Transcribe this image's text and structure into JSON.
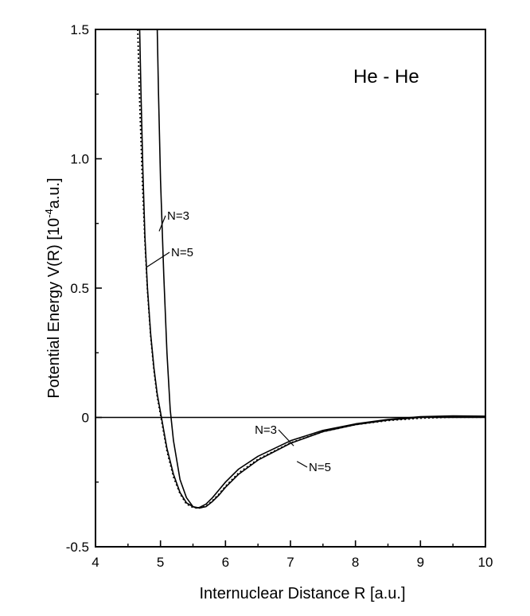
{
  "chart_data": {
    "type": "line",
    "title": "He - He",
    "xlabel": "Internuclear Distance R [a.u.]",
    "ylabel_main": "Potential Energy V(R) [10",
    "ylabel_exp": "-4",
    "ylabel_unit": "a.u.]",
    "xlim": [
      4,
      10
    ],
    "ylim": [
      -0.5,
      1.5
    ],
    "x_ticks": [
      "4",
      "5",
      "6",
      "7",
      "8",
      "9",
      "10"
    ],
    "y_ticks": [
      "-0.5",
      "0",
      "0.5",
      "1.0",
      "1.5"
    ],
    "grid": false,
    "legend": "none",
    "series": [
      {
        "name": "N=3",
        "style": "solid",
        "x": [
          4.95,
          4.97,
          5.0,
          5.05,
          5.1,
          5.15,
          5.2,
          5.3,
          5.4,
          5.5,
          5.55,
          5.6,
          5.7,
          5.8,
          5.9,
          6.0,
          6.2,
          6.5,
          7.0,
          7.5,
          8.0,
          8.5,
          9.0,
          9.5,
          10.0
        ],
        "y": [
          1.5,
          1.25,
          0.92,
          0.55,
          0.25,
          0.03,
          -0.09,
          -0.24,
          -0.31,
          -0.345,
          -0.35,
          -0.348,
          -0.335,
          -0.31,
          -0.28,
          -0.25,
          -0.2,
          -0.15,
          -0.09,
          -0.05,
          -0.025,
          -0.008,
          0.003,
          0.006,
          0.005
        ]
      },
      {
        "name": "N=5",
        "style": "solid",
        "x": [
          4.68,
          4.7,
          4.73,
          4.76,
          4.8,
          4.85,
          4.9,
          4.95,
          5.0,
          5.1,
          5.2,
          5.3,
          5.4,
          5.5,
          5.6,
          5.7,
          5.8,
          5.9,
          6.0,
          6.2,
          6.5,
          7.0,
          7.5,
          8.0,
          8.5,
          9.0,
          9.5,
          10.0
        ],
        "y": [
          1.5,
          1.25,
          0.95,
          0.7,
          0.5,
          0.32,
          0.19,
          0.09,
          0.02,
          -0.12,
          -0.22,
          -0.29,
          -0.33,
          -0.345,
          -0.35,
          -0.345,
          -0.325,
          -0.3,
          -0.27,
          -0.22,
          -0.165,
          -0.1,
          -0.055,
          -0.028,
          -0.01,
          0.0,
          0.004,
          0.003
        ]
      },
      {
        "name": "",
        "style": "dotted",
        "x": [
          4.65,
          4.68,
          4.72,
          4.76,
          4.8,
          4.85,
          4.9,
          4.95,
          5.0,
          5.1,
          5.2,
          5.3,
          5.4,
          5.5,
          5.6,
          5.7,
          5.8,
          5.9,
          6.0,
          6.2,
          6.5,
          7.0,
          7.5,
          8.0,
          8.5,
          9.0,
          9.5,
          10.0
        ],
        "y": [
          1.5,
          1.22,
          0.92,
          0.68,
          0.49,
          0.31,
          0.18,
          0.08,
          0.01,
          -0.13,
          -0.23,
          -0.295,
          -0.335,
          -0.348,
          -0.35,
          -0.343,
          -0.322,
          -0.296,
          -0.266,
          -0.215,
          -0.162,
          -0.098,
          -0.055,
          -0.028,
          -0.012,
          -0.003,
          0.001,
          0.001
        ]
      }
    ],
    "annotations": [
      {
        "text": "N=3",
        "target_x": 4.98,
        "target_y": 0.72
      },
      {
        "text": "N=5",
        "target_x": 4.78,
        "target_y": 0.58
      },
      {
        "text": "N=3",
        "target_x": 7.05,
        "target_y": -0.11
      },
      {
        "text": "N=5",
        "target_x": 7.1,
        "target_y": -0.17
      }
    ]
  }
}
